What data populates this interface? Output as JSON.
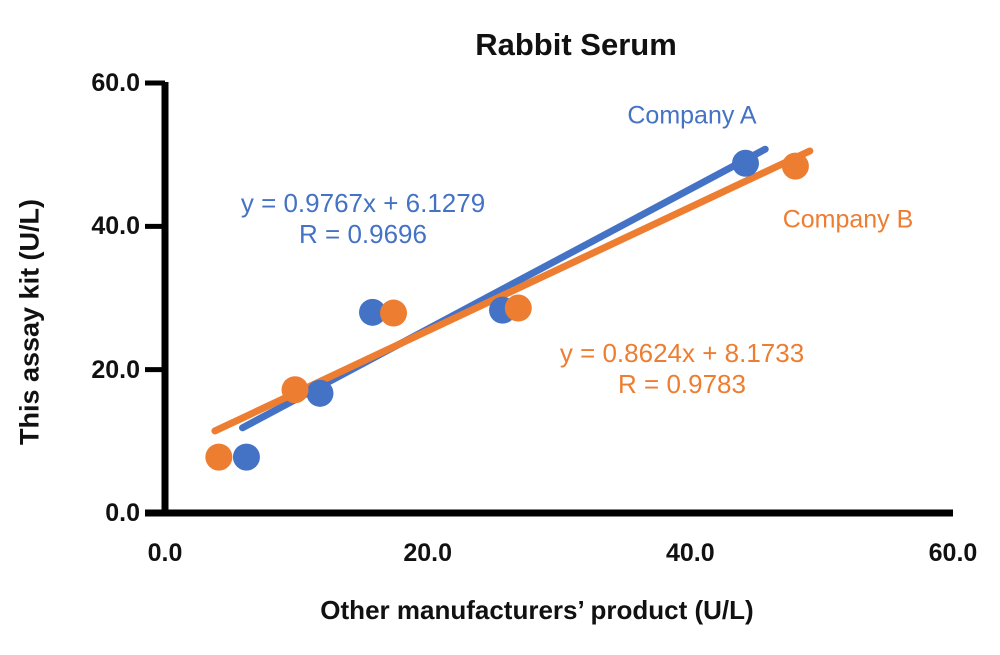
{
  "chart_data": {
    "type": "scatter",
    "title": "Rabbit Serum",
    "xlabel": "Other manufacturers’ product (U/L)",
    "ylabel": "This assay kit (U/L)",
    "xlim": [
      0,
      60
    ],
    "ylim": [
      0,
      60
    ],
    "x_ticks": [
      "0.0",
      "20.0",
      "40.0",
      "60.0"
    ],
    "y_ticks": [
      "0.0",
      "20.0",
      "40.0",
      "60.0"
    ],
    "grid": false,
    "axis_color": "#000000",
    "legend_position": "inline annotations near top-right of each trendline",
    "series": [
      {
        "name": "Company A",
        "color": "#4472C4",
        "points": [
          [
            6.2,
            7.8
          ],
          [
            11.8,
            16.7
          ],
          [
            15.8,
            28.0
          ],
          [
            25.7,
            28.3
          ],
          [
            44.2,
            48.8
          ]
        ],
        "trendline": {
          "slope": 0.9767,
          "intercept": 6.1279,
          "x_start": 5.9,
          "x_end": 45.7
        },
        "equation_line1": "y = 0.9767x + 6.1279",
        "equation_line2": "R = 0.9696"
      },
      {
        "name": "Company B",
        "color": "#ED7D31",
        "points": [
          [
            4.1,
            7.8
          ],
          [
            9.9,
            17.2
          ],
          [
            17.4,
            27.9
          ],
          [
            26.9,
            28.6
          ],
          [
            48.0,
            48.4
          ]
        ],
        "trendline": {
          "slope": 0.8624,
          "intercept": 8.1733,
          "x_start": 3.8,
          "x_end": 49.1
        },
        "equation_line1": "y = 0.8624x + 8.1733",
        "equation_line2": "R = 0.9783"
      }
    ]
  }
}
